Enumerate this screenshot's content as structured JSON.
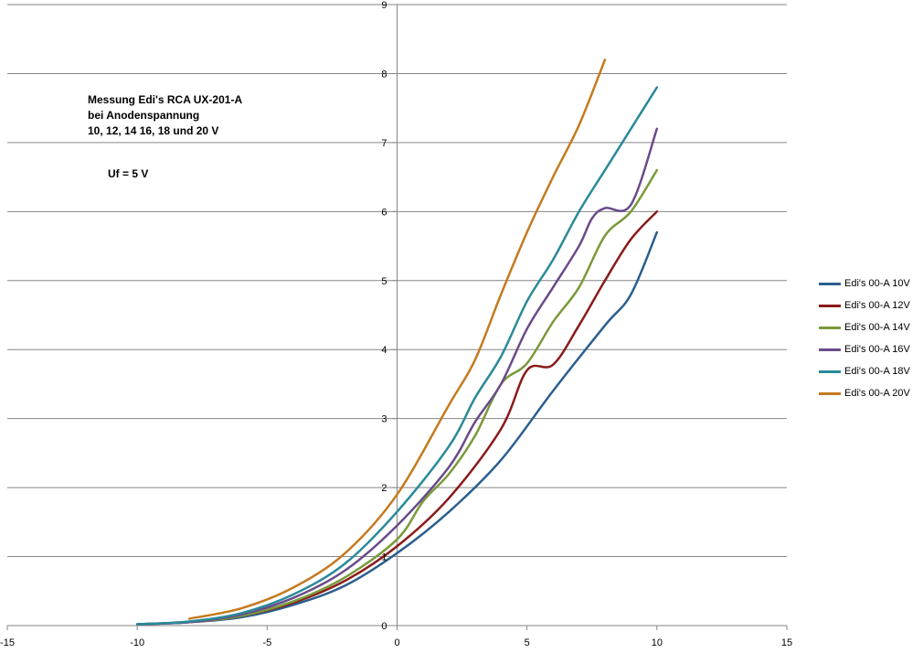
{
  "annotations": {
    "title_line1": "Messung Edi's RCA UX-201-A",
    "title_line2": "bei Anodenspannung",
    "title_line3": "10, 12, 14 16, 18 und 20  V",
    "uf_note": "Uf = 5  V"
  },
  "chart_data": {
    "type": "line",
    "xlim": [
      -15,
      15
    ],
    "ylim": [
      0,
      9
    ],
    "xticks": [
      -15,
      -10,
      -5,
      0,
      5,
      10,
      15
    ],
    "yticks": [
      0,
      1,
      2,
      3,
      4,
      5,
      6,
      7,
      8,
      9
    ],
    "grid": "horizontal",
    "legend_position": "right",
    "series": [
      {
        "name": "Edi's 00-A 10V",
        "color": "#2a5f8f",
        "x": [
          -10,
          -8,
          -6,
          -4,
          -2,
          0,
          2,
          4,
          6,
          8,
          9,
          10
        ],
        "y": [
          0.02,
          0.05,
          0.12,
          0.3,
          0.58,
          1.05,
          1.65,
          2.4,
          3.4,
          4.35,
          4.8,
          5.7
        ]
      },
      {
        "name": "Edi's 00-A 12V",
        "color": "#8b1a1a",
        "x": [
          -10,
          -8,
          -6,
          -4,
          -2,
          0,
          2,
          4,
          5,
          6,
          7,
          8,
          9,
          10
        ],
        "y": [
          0.02,
          0.05,
          0.14,
          0.33,
          0.65,
          1.15,
          1.85,
          2.85,
          3.7,
          3.78,
          4.35,
          5.0,
          5.6,
          6.0
        ]
      },
      {
        "name": "Edi's 00-A 14V",
        "color": "#7a9a3a",
        "x": [
          -10,
          -8,
          -6,
          -4,
          -2,
          0,
          1,
          2,
          3,
          4,
          5,
          6,
          7,
          8,
          9,
          10
        ],
        "y": [
          0.02,
          0.05,
          0.14,
          0.35,
          0.7,
          1.25,
          1.8,
          2.2,
          2.75,
          3.5,
          3.8,
          4.4,
          4.9,
          5.65,
          6.0,
          6.6
        ]
      },
      {
        "name": "Edi's 00-A 16V",
        "color": "#6a4a8a",
        "x": [
          -10,
          -8,
          -6,
          -4,
          -2,
          0,
          2,
          3,
          4,
          5,
          6,
          7,
          7.5,
          8,
          9,
          10
        ],
        "y": [
          0.02,
          0.05,
          0.16,
          0.4,
          0.8,
          1.45,
          2.3,
          2.95,
          3.5,
          4.3,
          4.9,
          5.5,
          5.9,
          6.05,
          6.1,
          7.2
        ]
      },
      {
        "name": "Edi's 00-A 18V",
        "color": "#2a8a9a",
        "x": [
          -10,
          -8,
          -6,
          -4,
          -2,
          0,
          2,
          3,
          4,
          5,
          6,
          7,
          8,
          9,
          10
        ],
        "y": [
          0.02,
          0.06,
          0.18,
          0.45,
          0.9,
          1.65,
          2.6,
          3.3,
          3.9,
          4.7,
          5.3,
          6.0,
          6.6,
          7.2,
          7.8
        ]
      },
      {
        "name": "Edi's 00-A 20V",
        "color": "#c47a1e",
        "x": [
          -8,
          -6,
          -4,
          -2,
          0,
          2,
          3,
          4,
          5,
          6,
          7,
          8
        ],
        "y": [
          0.1,
          0.25,
          0.55,
          1.05,
          1.9,
          3.2,
          3.85,
          4.8,
          5.7,
          6.5,
          7.25,
          8.2
        ]
      }
    ]
  }
}
